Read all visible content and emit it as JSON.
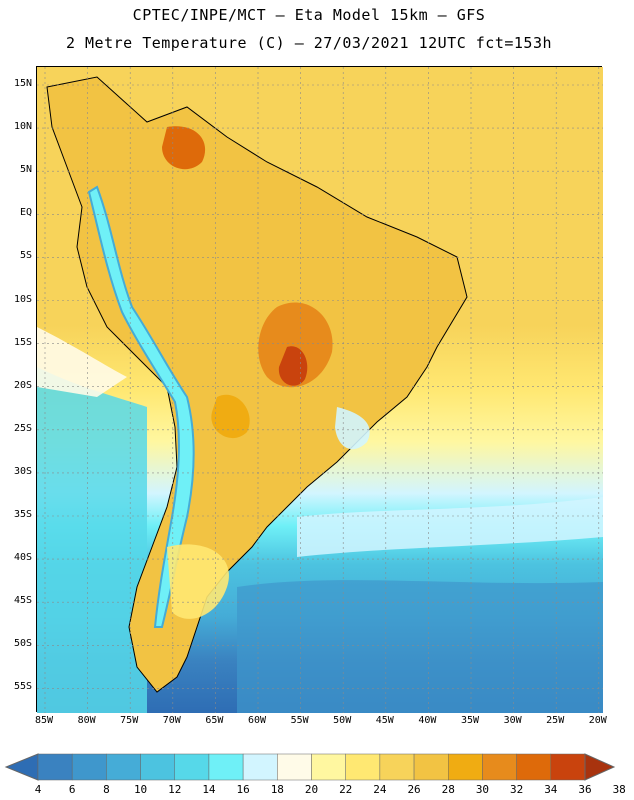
{
  "header": {
    "line1": "CPTEC/INPE/MCT –  Eta Model 15km – GFS",
    "line2": "2 Metre Temperature (C) – 27/03/2021 12UTC fct=153h"
  },
  "map": {
    "lat_labels": [
      "15N",
      "10N",
      "5N",
      "EQ",
      "5S",
      "10S",
      "15S",
      "20S",
      "25S",
      "30S",
      "35S",
      "40S",
      "45S",
      "50S",
      "55S"
    ],
    "lon_labels": [
      "85W",
      "80W",
      "75W",
      "70W",
      "65W",
      "60W",
      "55W",
      "50W",
      "45W",
      "40W",
      "35W",
      "30W",
      "25W",
      "20W"
    ]
  },
  "colorbar": {
    "labels": [
      "4",
      "6",
      "8",
      "10",
      "12",
      "14",
      "16",
      "18",
      "20",
      "22",
      "24",
      "26",
      "28",
      "30",
      "32",
      "34",
      "36",
      "38"
    ],
    "colors": [
      "#2e6db4",
      "#3a82c0",
      "#3f97cc",
      "#45acd7",
      "#4cc3e0",
      "#56d8e9",
      "#6ff0f7",
      "#d2f5ff",
      "#fffbe8",
      "#fff7a0",
      "#ffe872",
      "#f7d35a",
      "#f2c343",
      "#f0ac12",
      "#e78b1c",
      "#de6a0a",
      "#c9430d",
      "#a8330e"
    ]
  }
}
